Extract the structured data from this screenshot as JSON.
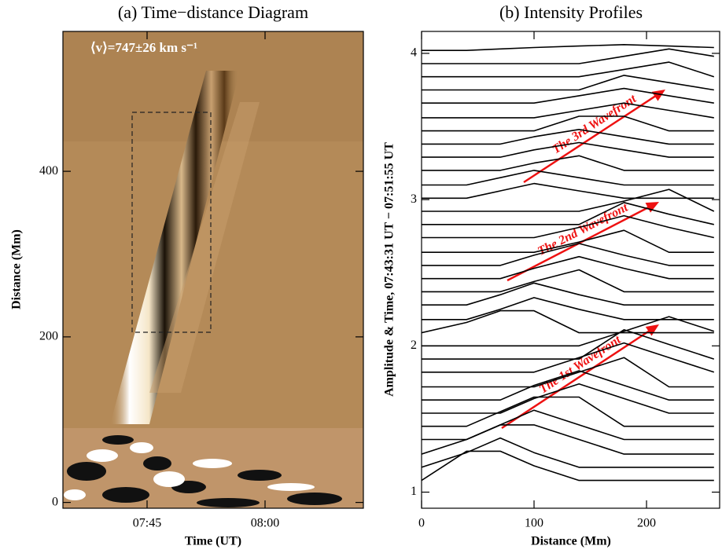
{
  "chart_data": [
    {
      "type": "image",
      "title": "(a) Time−distance Diagram",
      "xlabel": "Time (UT)",
      "ylabel": "Distance (Mm)",
      "annotation": "⟨v⟩=747±26 km s⁻¹",
      "xlim": [
        34.3,
        72.5
      ],
      "xticks": [
        {
          "value": 45,
          "label": "07:45"
        },
        {
          "value": 60,
          "label": "08:00"
        }
      ],
      "ylim": [
        -7,
        569
      ],
      "yticks": [
        0,
        200,
        400
      ]
    },
    {
      "type": "line",
      "title": "(b) Intensity Profiles",
      "xlabel": "Distance (Mm)",
      "ylabel": "Amplitude & Time, 07:43:31 UT − 07:51:55 UT",
      "annotations": [
        "The 1st Wavefront",
        "The 2nd Wavefront",
        "The 3rd Wavefront"
      ],
      "color": "#000000",
      "annotation_color": "#ee1111",
      "xlim": [
        0,
        265
      ],
      "xticks": [
        0,
        100,
        200
      ],
      "ylim": [
        0.89,
        4.15
      ],
      "yticks": [
        1,
        2,
        3,
        4
      ],
      "x": [
        0,
        40,
        70,
        100,
        140,
        180,
        220,
        260
      ],
      "series": [
        {
          "values": [
            1.08,
            1.28,
            1.28,
            1.18,
            1.08,
            1.08,
            1.08,
            1.08
          ]
        },
        {
          "values": [
            1.17,
            1.27,
            1.37,
            1.27,
            1.17,
            1.17,
            1.17,
            1.17
          ]
        },
        {
          "values": [
            1.26,
            1.36,
            1.46,
            1.46,
            1.36,
            1.26,
            1.26,
            1.26
          ]
        },
        {
          "values": [
            1.36,
            1.36,
            1.46,
            1.56,
            1.46,
            1.36,
            1.36,
            1.36
          ]
        },
        {
          "values": [
            1.45,
            1.45,
            1.55,
            1.65,
            1.65,
            1.45,
            1.45,
            1.45
          ]
        },
        {
          "values": [
            1.54,
            1.54,
            1.54,
            1.64,
            1.74,
            1.64,
            1.54,
            1.54
          ]
        },
        {
          "values": [
            1.63,
            1.63,
            1.63,
            1.73,
            1.83,
            1.73,
            1.63,
            1.63
          ]
        },
        {
          "values": [
            1.72,
            1.72,
            1.72,
            1.72,
            1.82,
            1.92,
            1.72,
            1.72
          ]
        },
        {
          "values": [
            1.82,
            1.82,
            1.82,
            1.82,
            1.92,
            2.02,
            1.92,
            1.82
          ]
        },
        {
          "values": [
            1.91,
            1.91,
            1.91,
            1.91,
            1.91,
            2.11,
            2.01,
            1.91
          ]
        },
        {
          "values": [
            2.0,
            2.0,
            2.0,
            2.0,
            2.0,
            2.1,
            2.2,
            2.1
          ]
        },
        {
          "values": [
            2.09,
            2.16,
            2.24,
            2.24,
            2.09,
            2.09,
            2.09,
            2.09
          ]
        },
        {
          "values": [
            2.18,
            2.18,
            2.25,
            2.33,
            2.25,
            2.18,
            2.18,
            2.18
          ]
        },
        {
          "values": [
            2.28,
            2.28,
            2.35,
            2.43,
            2.35,
            2.28,
            2.28,
            2.28
          ]
        },
        {
          "values": [
            2.37,
            2.37,
            2.37,
            2.44,
            2.52,
            2.37,
            2.37,
            2.37
          ]
        },
        {
          "values": [
            2.46,
            2.46,
            2.46,
            2.53,
            2.61,
            2.53,
            2.46,
            2.46
          ]
        },
        {
          "values": [
            2.55,
            2.55,
            2.55,
            2.62,
            2.7,
            2.62,
            2.55,
            2.55
          ]
        },
        {
          "values": [
            2.64,
            2.64,
            2.64,
            2.64,
            2.71,
            2.79,
            2.64,
            2.64
          ]
        },
        {
          "values": [
            2.74,
            2.74,
            2.74,
            2.74,
            2.81,
            2.89,
            2.81,
            2.74
          ]
        },
        {
          "values": [
            2.83,
            2.83,
            2.83,
            2.83,
            2.83,
            2.98,
            2.9,
            2.83
          ]
        },
        {
          "values": [
            2.92,
            2.92,
            2.92,
            2.92,
            2.92,
            2.99,
            3.07,
            2.92
          ]
        },
        {
          "values": [
            3.01,
            3.01,
            3.06,
            3.11,
            3.06,
            3.01,
            3.01,
            3.01
          ]
        },
        {
          "values": [
            3.1,
            3.1,
            3.15,
            3.2,
            3.15,
            3.1,
            3.1,
            3.1
          ]
        },
        {
          "values": [
            3.2,
            3.2,
            3.2,
            3.25,
            3.3,
            3.2,
            3.2,
            3.2
          ]
        },
        {
          "values": [
            3.29,
            3.29,
            3.29,
            3.34,
            3.39,
            3.34,
            3.29,
            3.29
          ]
        },
        {
          "values": [
            3.38,
            3.38,
            3.38,
            3.43,
            3.48,
            3.43,
            3.38,
            3.38
          ]
        },
        {
          "values": [
            3.47,
            3.47,
            3.47,
            3.47,
            3.57,
            3.57,
            3.47,
            3.47
          ]
        },
        {
          "values": [
            3.56,
            3.56,
            3.56,
            3.56,
            3.61,
            3.66,
            3.61,
            3.56
          ]
        },
        {
          "values": [
            3.66,
            3.66,
            3.66,
            3.66,
            3.71,
            3.76,
            3.71,
            3.66
          ]
        },
        {
          "values": [
            3.75,
            3.75,
            3.75,
            3.75,
            3.75,
            3.85,
            3.8,
            3.75
          ]
        },
        {
          "values": [
            3.84,
            3.84,
            3.84,
            3.84,
            3.84,
            3.89,
            3.94,
            3.84
          ]
        },
        {
          "values": [
            3.93,
            3.93,
            3.93,
            3.93,
            3.93,
            3.98,
            4.03,
            3.98
          ]
        },
        {
          "values": [
            4.02,
            4.02,
            4.03,
            4.04,
            4.05,
            4.06,
            4.05,
            4.04
          ]
        }
      ]
    }
  ]
}
